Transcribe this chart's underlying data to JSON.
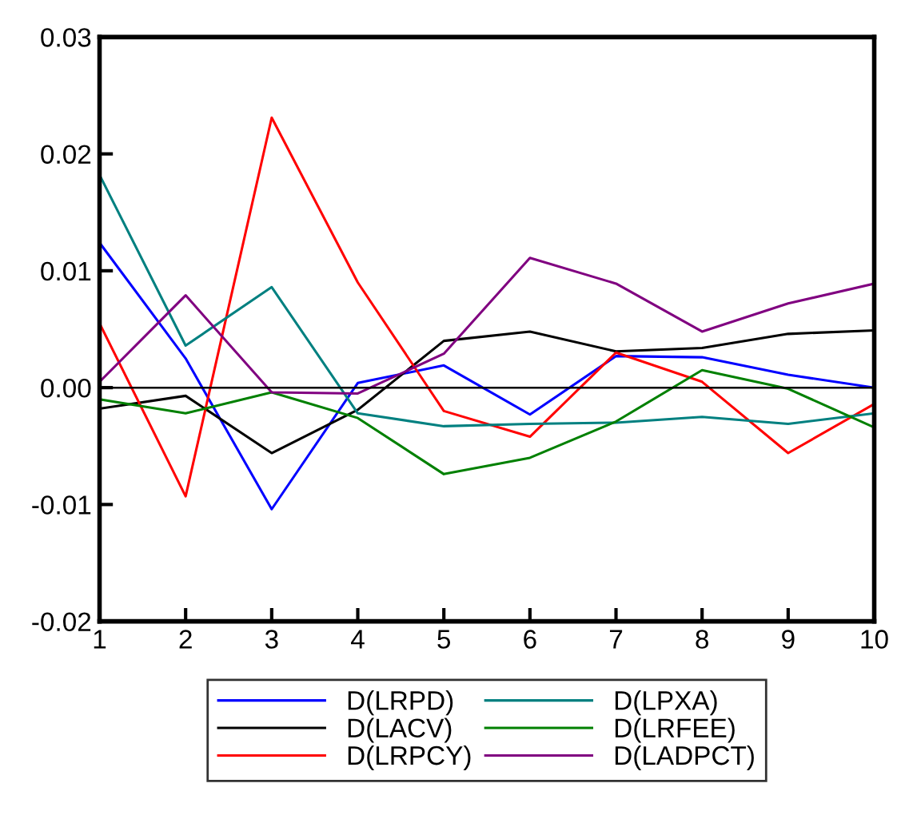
{
  "chart_data": {
    "type": "line",
    "x": [
      1,
      2,
      3,
      4,
      5,
      6,
      7,
      8,
      9,
      10
    ],
    "series": [
      {
        "name": "D(LRPD)",
        "color": "#0000ff",
        "values": [
          0.0124,
          0.0025,
          -0.0104,
          0.0004,
          0.0019,
          -0.0023,
          0.0027,
          0.0026,
          0.0011,
          0.0
        ]
      },
      {
        "name": "D(LACV)",
        "color": "#000000",
        "values": [
          -0.0018,
          -0.0007,
          -0.0056,
          -0.0019,
          0.004,
          0.0048,
          0.0031,
          0.0034,
          0.0046,
          0.0049
        ]
      },
      {
        "name": "D(LRPCY)",
        "color": "#ff0000",
        "values": [
          0.0055,
          -0.0093,
          0.0231,
          0.009,
          -0.002,
          -0.0042,
          0.003,
          0.0005,
          -0.0056,
          -0.0014
        ]
      },
      {
        "name": "D(LPXA)",
        "color": "#008080",
        "values": [
          0.0182,
          0.0036,
          0.0086,
          -0.0022,
          -0.0033,
          -0.0031,
          -0.003,
          -0.0025,
          -0.0031,
          -0.0022
        ]
      },
      {
        "name": "D(LRFEE)",
        "color": "#008000",
        "values": [
          -0.001,
          -0.0022,
          -0.0004,
          -0.0026,
          -0.0074,
          -0.006,
          -0.0029,
          0.0015,
          -0.0001,
          -0.0034
        ]
      },
      {
        "name": "D(LADPCT)",
        "color": "#800080",
        "values": [
          0.0005,
          0.0079,
          -0.0004,
          -0.0005,
          0.0029,
          0.0111,
          0.0089,
          0.0048,
          0.0072,
          0.0089
        ]
      }
    ],
    "xlim": [
      1,
      10
    ],
    "xticks": [
      1,
      2,
      3,
      4,
      5,
      6,
      7,
      8,
      9,
      10
    ],
    "ylim": [
      -0.02,
      0.03
    ],
    "yticks": [
      {
        "value": -0.02,
        "label": "-0.02"
      },
      {
        "value": -0.01,
        "label": "-0.01"
      },
      {
        "value": 0,
        "label": "0.00"
      },
      {
        "value": 0.01,
        "label": "0.01"
      },
      {
        "value": 0.02,
        "label": "0.02"
      },
      {
        "value": 0.03,
        "label": "0.03"
      }
    ],
    "ref_lines": [
      {
        "axis": "y",
        "value": 0,
        "color": "#000000"
      }
    ],
    "legend": "bottom",
    "grid": false
  }
}
